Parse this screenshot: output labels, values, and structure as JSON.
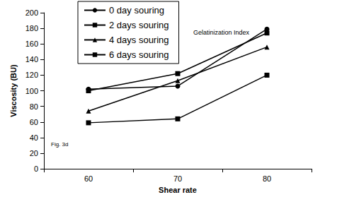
{
  "chart_data": {
    "type": "line",
    "title": "Gelatinization Index",
    "annotations": [
      "Fig. 3d"
    ],
    "x_label": "Shear rate",
    "y_label": "Viscosity (BU)",
    "categories": [
      "60",
      "70",
      "80"
    ],
    "series": [
      {
        "name": "0 day souring",
        "color": "#000000",
        "marker": "circle",
        "values": [
          102,
          106,
          179
        ]
      },
      {
        "name": "2 days souring",
        "color": "#000000",
        "marker": "square",
        "values": [
          100,
          122,
          174
        ]
      },
      {
        "name": "4 days souring",
        "color": "#000000",
        "marker": "triangle",
        "values": [
          74,
          113,
          156
        ]
      },
      {
        "name": "6 days souring",
        "color": "#000000",
        "marker": "square",
        "values": [
          59,
          64,
          120
        ]
      }
    ],
    "ylim": [
      0,
      200
    ],
    "yticks": [
      0,
      20,
      40,
      60,
      80,
      100,
      120,
      140,
      160,
      180,
      200
    ],
    "grid": false,
    "legend": "upper left"
  }
}
